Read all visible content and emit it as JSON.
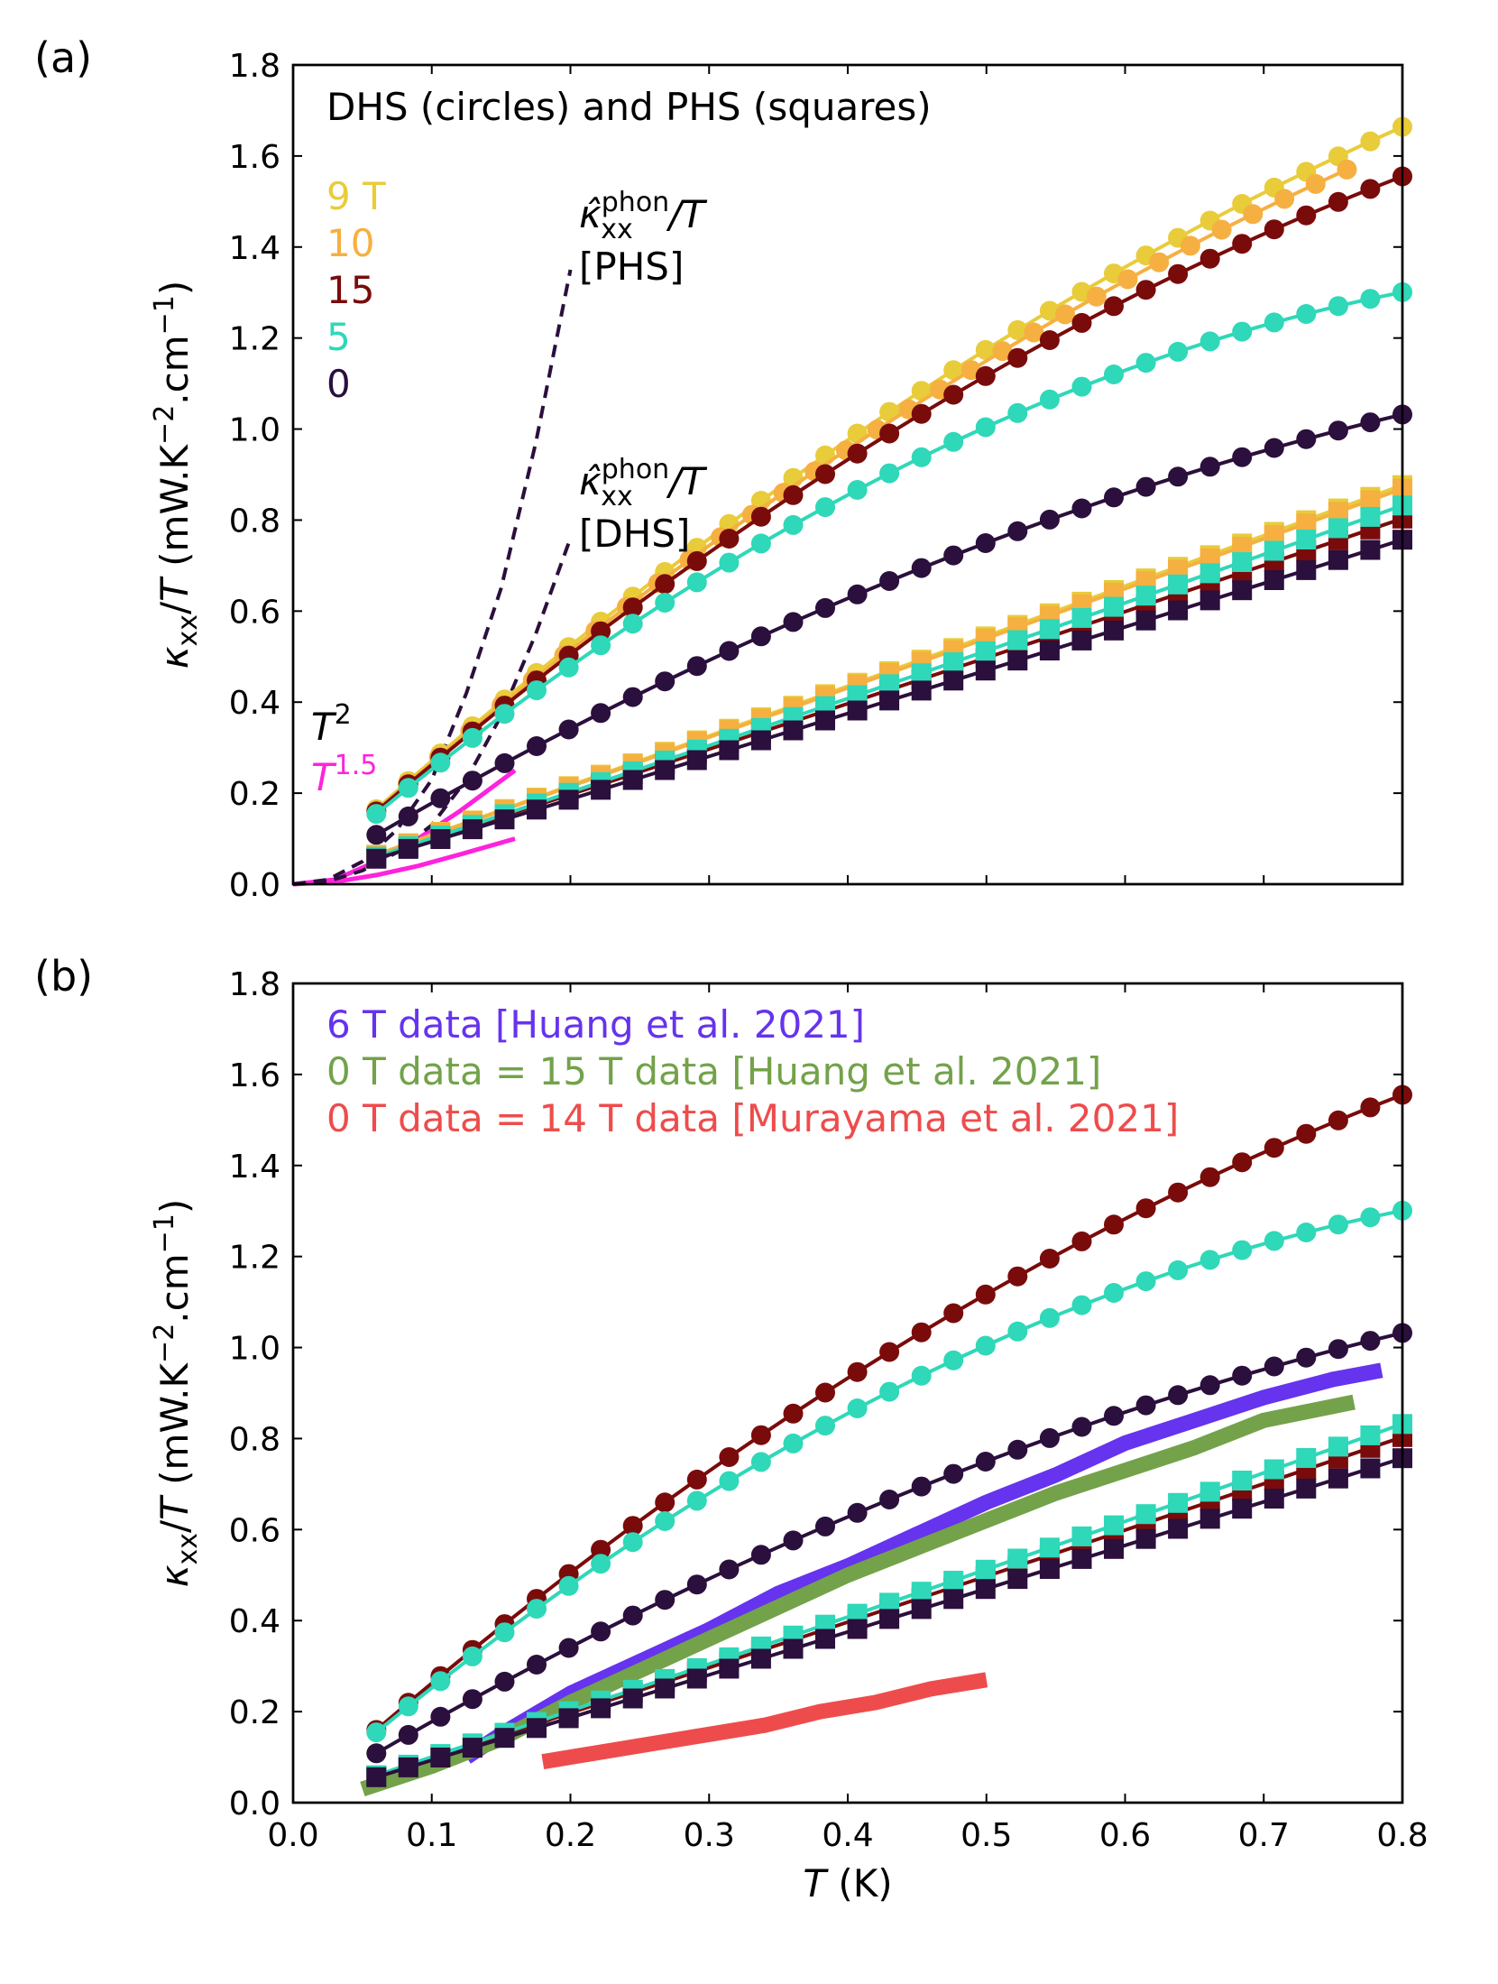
{
  "colors": {
    "9T": "#e8cc3a",
    "10T": "#f5b041",
    "15T": "#7a0b0b",
    "5T": "#2ed8b8",
    "0T": "#2b0f3c",
    "pink": "#ff22dd",
    "huang6": "#6633ee",
    "huang0": "#73a24a",
    "murayama": "#ee4c4c"
  },
  "chart_data": [
    {
      "type": "line",
      "panel": "(a)",
      "title": "",
      "xlabel": "",
      "ylabel": "κxx/T (mW.K−2.cm−1)",
      "ylabel_parts": {
        "main": "κ",
        "sub": "xx",
        "mid": "/",
        "var": "T",
        "unit": " (mW.K",
        "exp1": "−2",
        "unit2": ".cm",
        "exp2": "−1",
        "end": ")"
      },
      "xlim": [
        0.0,
        0.8
      ],
      "ylim": [
        0.0,
        1.8
      ],
      "x_ticks": [
        "0.0",
        "0.1",
        "0.2",
        "0.3",
        "0.4",
        "0.5",
        "0.6",
        "0.7",
        "0.8"
      ],
      "y_ticks": [
        "0.0",
        "0.2",
        "0.4",
        "0.6",
        "0.8",
        "1.0",
        "1.2",
        "1.4",
        "1.6",
        "1.8"
      ],
      "annotation_title": "DHS (circles) and PHS (squares)",
      "legend": [
        {
          "label": "9 T",
          "color_key": "9T"
        },
        {
          "label": "10",
          "color_key": "10T"
        },
        {
          "label": "15",
          "color_key": "15T"
        },
        {
          "label": "5",
          "color_key": "5T"
        },
        {
          "label": "0",
          "color_key": "0T"
        }
      ],
      "phonon_labels": [
        {
          "line1": "κ̂",
          "sup": "phon",
          "sub": "xx",
          "tail": "/T",
          "line2": "[PHS]"
        },
        {
          "line1": "κ̂",
          "sup": "phon",
          "sub": "xx",
          "tail": "/T",
          "line2": "[DHS]"
        }
      ],
      "power_labels": [
        {
          "base": "T",
          "exp": "2",
          "color_key": "0T"
        },
        {
          "base": "T",
          "exp": "1.5",
          "color_key": "pink"
        }
      ],
      "series": [
        {
          "name": "DHS 9 T",
          "marker": "circle",
          "color_key": "9T",
          "a": 2.8,
          "b": 0.9,
          "x0": 0.06,
          "x1": 0.8,
          "n": 33
        },
        {
          "name": "DHS 10 T",
          "marker": "circle",
          "color_key": "10T",
          "a": 2.75,
          "b": 0.9,
          "x0": 0.06,
          "x1": 0.76,
          "n": 32
        },
        {
          "name": "DHS 15 T",
          "marker": "circle",
          "color_key": "15T",
          "a": 2.72,
          "b": 0.97,
          "x0": 0.06,
          "x1": 0.8,
          "n": 33
        },
        {
          "name": "DHS 5 T",
          "marker": "circle",
          "color_key": "5T",
          "a": 2.65,
          "b": 1.28,
          "x0": 0.06,
          "x1": 0.8,
          "n": 33
        },
        {
          "name": "DHS 0 T",
          "marker": "circle",
          "color_key": "0T",
          "a": 1.85,
          "b": 0.7,
          "x0": 0.06,
          "x1": 0.8,
          "n": 33
        },
        {
          "name": "PHS 9 T",
          "marker": "square",
          "color_key": "9T",
          "a": 1.08,
          "b": -0.02,
          "x0": 0.06,
          "x1": 0.8,
          "n": 33
        },
        {
          "name": "PHS 10 T",
          "marker": "square",
          "color_key": "10T",
          "a": 1.07,
          "b": -0.02,
          "x0": 0.06,
          "x1": 0.8,
          "n": 33
        },
        {
          "name": "PHS 15 T",
          "marker": "square",
          "color_key": "15T",
          "a": 0.98,
          "b": -0.03,
          "x0": 0.06,
          "x1": 0.8,
          "n": 33
        },
        {
          "name": "PHS 5 T",
          "marker": "square",
          "color_key": "5T",
          "a": 1.0,
          "b": -0.05,
          "x0": 0.06,
          "x1": 0.8,
          "n": 33
        },
        {
          "name": "PHS 0 T",
          "marker": "square",
          "color_key": "0T",
          "a": 0.93,
          "b": -0.02,
          "x0": 0.06,
          "x1": 0.8,
          "n": 33
        }
      ],
      "fits": [
        {
          "name": "T^1.5 fit DHS",
          "color_key": "pink",
          "style": "solid",
          "x": [
            0.0,
            0.03,
            0.06,
            0.09,
            0.12,
            0.16
          ],
          "y": [
            0.0,
            0.01,
            0.05,
            0.1,
            0.16,
            0.25
          ]
        },
        {
          "name": "T^1.5 fit PHS",
          "color_key": "pink",
          "style": "solid",
          "x": [
            0.0,
            0.03,
            0.06,
            0.09,
            0.12,
            0.16
          ],
          "y": [
            0.0,
            0.005,
            0.02,
            0.04,
            0.065,
            0.1
          ]
        },
        {
          "name": "phonon PHS",
          "color_key": "0T",
          "style": "dashed",
          "x": [
            0.0,
            0.025,
            0.05,
            0.075,
            0.1,
            0.125,
            0.15,
            0.175,
            0.2
          ],
          "y": [
            0.0,
            0.01,
            0.05,
            0.12,
            0.23,
            0.42,
            0.65,
            0.97,
            1.35
          ]
        },
        {
          "name": "phonon DHS",
          "color_key": "0T",
          "style": "dashed",
          "x": [
            0.0,
            0.025,
            0.05,
            0.075,
            0.1,
            0.125,
            0.15,
            0.175,
            0.2
          ],
          "y": [
            0.0,
            0.006,
            0.03,
            0.07,
            0.13,
            0.23,
            0.37,
            0.55,
            0.76
          ]
        }
      ]
    },
    {
      "type": "line",
      "panel": "(b)",
      "title": "",
      "xlabel": "T (K)",
      "ylabel": "κxx/T (mW.K−2.cm−1)",
      "xlim": [
        0.0,
        0.8
      ],
      "ylim": [
        0.0,
        1.8
      ],
      "x_ticks": [
        "0.0",
        "0.1",
        "0.2",
        "0.3",
        "0.4",
        "0.5",
        "0.6",
        "0.7",
        "0.8"
      ],
      "y_ticks": [
        "0.0",
        "0.2",
        "0.4",
        "0.6",
        "0.8",
        "1.0",
        "1.2",
        "1.4",
        "1.6",
        "1.8"
      ],
      "legend": [
        {
          "label": "6 T data [Huang et al. 2021]",
          "color_key": "huang6"
        },
        {
          "label": "0 T data = 15 T data [Huang et al. 2021]",
          "color_key": "huang0"
        },
        {
          "label": "0 T data = 14 T data [Murayama et al. 2021]",
          "color_key": "murayama"
        }
      ],
      "series": [
        {
          "name": "DHS 15 T",
          "marker": "circle",
          "color_key": "15T",
          "a": 2.72,
          "b": 0.97,
          "x0": 0.06,
          "x1": 0.8,
          "n": 33
        },
        {
          "name": "DHS 5 T",
          "marker": "circle",
          "color_key": "5T",
          "a": 2.65,
          "b": 1.28,
          "x0": 0.06,
          "x1": 0.8,
          "n": 33
        },
        {
          "name": "DHS 0 T",
          "marker": "circle",
          "color_key": "0T",
          "a": 1.85,
          "b": 0.7,
          "x0": 0.06,
          "x1": 0.8,
          "n": 33
        },
        {
          "name": "PHS 15 T",
          "marker": "square",
          "color_key": "15T",
          "a": 0.98,
          "b": -0.03,
          "x0": 0.06,
          "x1": 0.8,
          "n": 33
        },
        {
          "name": "PHS 5 T",
          "marker": "square",
          "color_key": "5T",
          "a": 1.0,
          "b": -0.05,
          "x0": 0.06,
          "x1": 0.8,
          "n": 33
        },
        {
          "name": "PHS 0 T",
          "marker": "square",
          "color_key": "0T",
          "a": 0.93,
          "b": -0.02,
          "x0": 0.06,
          "x1": 0.8,
          "n": 33
        }
      ],
      "thick_lines": [
        {
          "name": "6 T data [Huang et al. 2021]",
          "color_key": "huang6",
          "x": [
            0.125,
            0.15,
            0.2,
            0.25,
            0.3,
            0.35,
            0.4,
            0.45,
            0.5,
            0.55,
            0.6,
            0.65,
            0.7,
            0.75,
            0.785
          ],
          "y": [
            0.1,
            0.15,
            0.24,
            0.31,
            0.38,
            0.46,
            0.52,
            0.59,
            0.66,
            0.72,
            0.79,
            0.84,
            0.89,
            0.93,
            0.95
          ]
        },
        {
          "name": "0 T data = 15 T data [Huang et al. 2021]",
          "color_key": "huang0",
          "x": [
            0.05,
            0.1,
            0.15,
            0.2,
            0.25,
            0.3,
            0.35,
            0.4,
            0.45,
            0.5,
            0.55,
            0.6,
            0.65,
            0.7,
            0.765
          ],
          "y": [
            0.03,
            0.08,
            0.14,
            0.22,
            0.29,
            0.36,
            0.43,
            0.5,
            0.56,
            0.62,
            0.68,
            0.73,
            0.78,
            0.84,
            0.88
          ]
        },
        {
          "name": "0 T data = 14 T data [Murayama et al. 2021]",
          "color_key": "murayama",
          "x": [
            0.18,
            0.22,
            0.26,
            0.3,
            0.34,
            0.38,
            0.42,
            0.46,
            0.5
          ],
          "y": [
            0.09,
            0.11,
            0.13,
            0.15,
            0.17,
            0.2,
            0.22,
            0.25,
            0.27
          ]
        }
      ]
    }
  ]
}
